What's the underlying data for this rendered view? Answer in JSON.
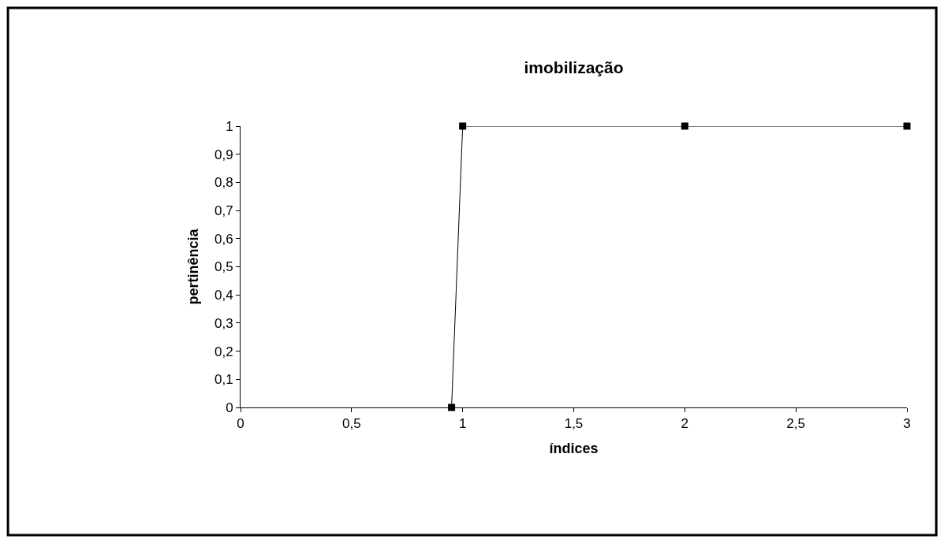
{
  "chart_data": {
    "type": "line",
    "title": "imobilização",
    "xlabel": "índices",
    "ylabel": "pertinência",
    "x": [
      0.95,
      1,
      2,
      3
    ],
    "series": [
      {
        "color": "#000000",
        "values": [
          0,
          1,
          1,
          1
        ]
      }
    ],
    "xlim": [
      0,
      3
    ],
    "xticks": [
      0,
      {
        "value": 0.5,
        "label": "0,5"
      },
      1,
      {
        "value": 1.5,
        "label": "1,5"
      },
      2,
      {
        "value": 2.5,
        "label": "2,5"
      },
      3
    ],
    "ylim": [
      0,
      1
    ],
    "yticks": [
      0,
      {
        "value": 0.1,
        "label": "0,1"
      },
      {
        "value": 0.2,
        "label": "0,2"
      },
      {
        "value": 0.3,
        "label": "0,3"
      },
      {
        "value": 0.4,
        "label": "0,4"
      },
      {
        "value": 0.5,
        "label": "0,5"
      },
      {
        "value": 0.6,
        "label": "0,6"
      },
      {
        "value": 0.7,
        "label": "0,7"
      },
      {
        "value": 0.8,
        "label": "0,8"
      },
      {
        "value": 0.9,
        "label": "0,9"
      },
      1
    ],
    "marker": "square",
    "line_style": "solid"
  }
}
